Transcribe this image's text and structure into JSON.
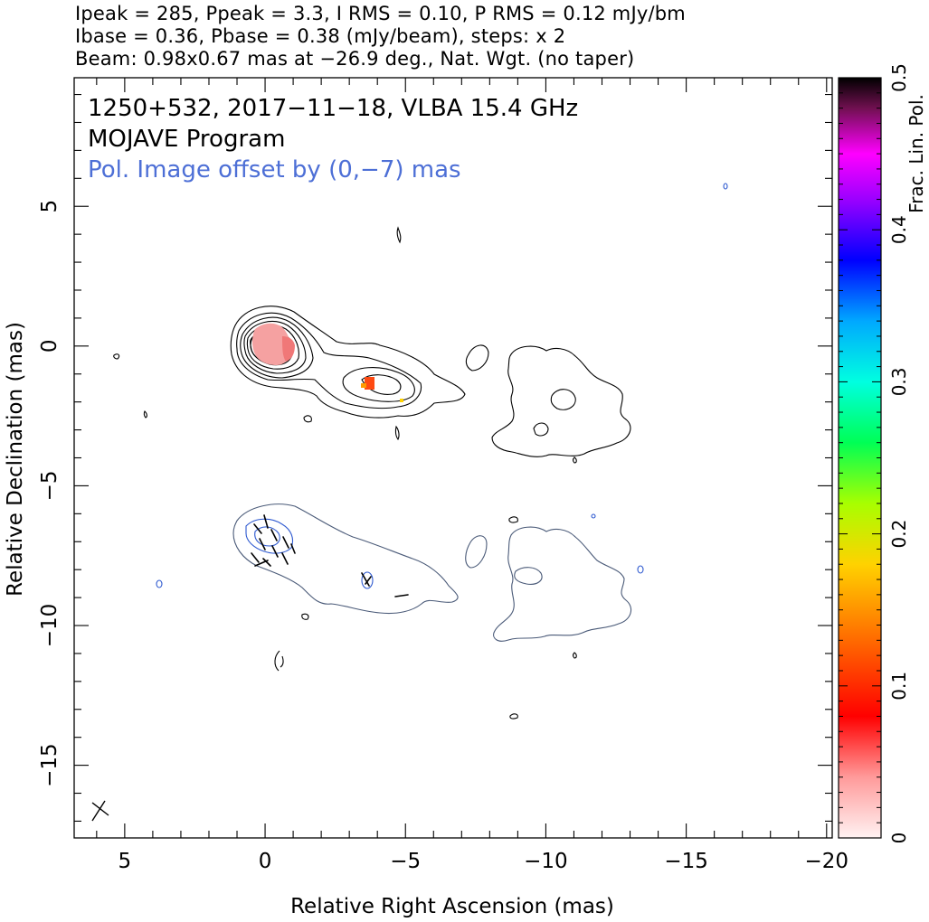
{
  "header": {
    "line1": "Ipeak = 285, Ppeak = 3.3, I RMS = 0.10, P RMS = 0.12 mJy/bm",
    "line2": "Ibase = 0.36, Pbase = 0.38 (mJy/beam), steps: x 2",
    "line3": "Beam: 0.98x0.67 mas at −26.9 deg., Nat. Wgt. (no taper)"
  },
  "chart_data": {
    "type": "contour",
    "annotation": {
      "line1": "1250+532, 2017−11−18, VLBA 15.4 GHz",
      "line2": "MOJAVE Program",
      "line3": "Pol. Image offset by (0,−7) mas",
      "line3_color": "#4d6fd6"
    },
    "xlabel": "Relative Right Ascension (mas)",
    "ylabel": "Relative Declination (mas)",
    "xlim": [
      6.8,
      -20.2
    ],
    "ylim": [
      -17.6,
      9.6
    ],
    "x_ticks": [
      5,
      0,
      -5,
      -10,
      -15,
      -20
    ],
    "x_tick_labels": [
      "5",
      "0",
      "−5",
      "−10",
      "−15",
      "−20"
    ],
    "y_ticks": [
      5,
      0,
      -5,
      -10,
      -15
    ],
    "y_tick_labels": [
      "5",
      "0",
      "−5",
      "−10",
      "−15"
    ],
    "colorbar": {
      "label": "Frac. Lin. Pol.",
      "range": [
        0,
        0.5
      ],
      "ticks": [
        0,
        0.1,
        0.2,
        0.3,
        0.4,
        0.5
      ],
      "tick_labels": [
        "0",
        "0.1",
        "0.2",
        "0.3",
        "0.4",
        "0.5"
      ]
    },
    "stokes_I_contours": {
      "core": {
        "x": 0,
        "y": 0
      },
      "outer_region_x_range": [
        1.2,
        -13.3
      ],
      "levels_count": 10
    },
    "polarization_patches": [
      {
        "x": -0.3,
        "y": -0.2,
        "frac_pol": 0.03
      },
      {
        "x": -0.9,
        "y": -0.1,
        "frac_pol": 0.08
      },
      {
        "x": -3.7,
        "y": -1.4,
        "frac_pol": 0.12
      },
      {
        "x": -4.9,
        "y": -2.0,
        "frac_pol": 0.2
      }
    ],
    "evpa_ticks_count": 14,
    "beam": {
      "major_mas": 0.98,
      "minor_mas": 0.67,
      "pa_deg": -26.9
    }
  }
}
